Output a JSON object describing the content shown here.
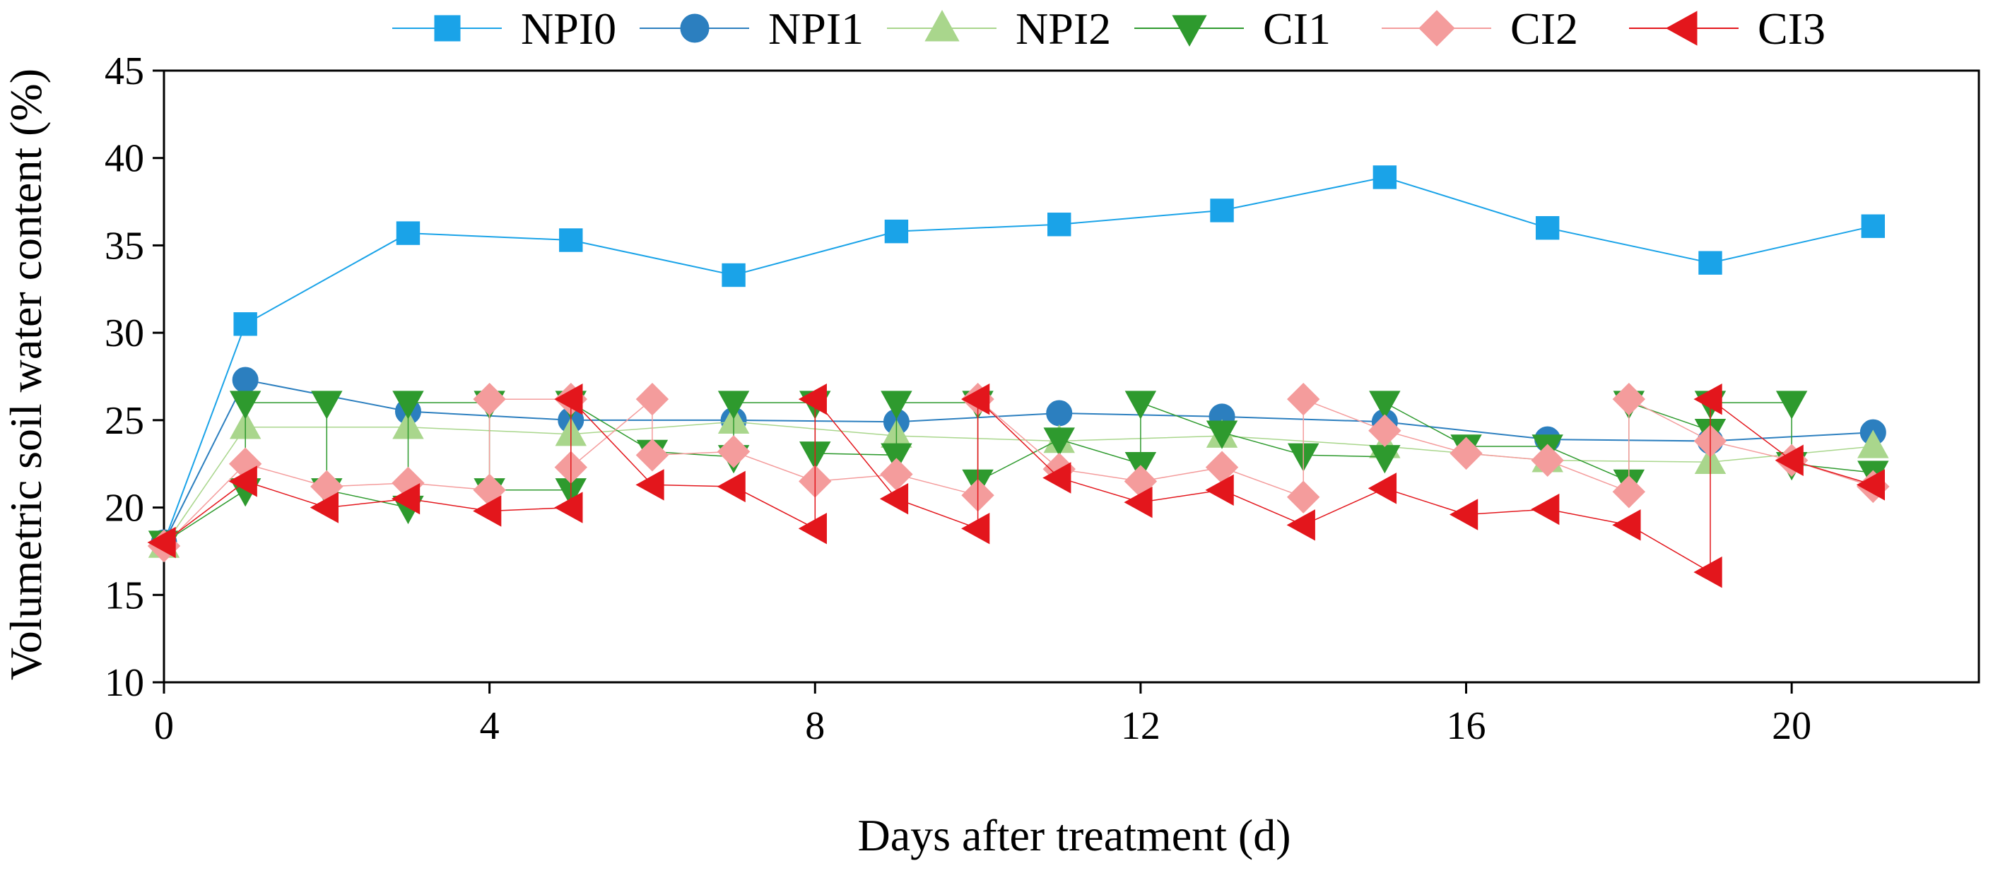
{
  "chart_data": {
    "type": "line",
    "title": "",
    "xlabel": "Days after treatment (d)",
    "ylabel": "Volumetric soil water content (%)",
    "xlim": [
      0,
      22.3
    ],
    "ylim": [
      10,
      45
    ],
    "xticks": [
      0,
      4,
      8,
      12,
      16,
      20
    ],
    "yticks": [
      10,
      15,
      20,
      25,
      30,
      35,
      40,
      45
    ],
    "grid": false,
    "legend_position": "top",
    "series": [
      {
        "name": "NPI0",
        "color": "#1aa3e8",
        "marker": "square",
        "line_width": 2,
        "x": [
          0,
          1,
          3,
          5,
          7,
          9,
          11,
          13,
          15,
          17,
          19,
          21
        ],
        "y": [
          18,
          30.5,
          35.7,
          35.3,
          33.3,
          35.8,
          36.2,
          37,
          38.9,
          36,
          34,
          36.1
        ]
      },
      {
        "name": "NPI1",
        "color": "#2c7fbf",
        "marker": "circle",
        "line_width": 2,
        "x": [
          0,
          1,
          3,
          5,
          7,
          9,
          11,
          13,
          15,
          17,
          19,
          21
        ],
        "y": [
          18,
          27.3,
          25.5,
          25,
          25,
          24.9,
          25.4,
          25.2,
          24.9,
          23.9,
          23.8,
          24.3
        ]
      },
      {
        "name": "NPI2",
        "color": "#a9d68c",
        "marker": "triangle-up",
        "line_width": 1.5,
        "x": [
          0,
          1,
          3,
          5,
          7,
          9,
          11,
          13,
          15,
          17,
          19,
          21
        ],
        "y": [
          17.8,
          24.6,
          24.6,
          24.2,
          24.9,
          24.1,
          23.8,
          24.1,
          23.5,
          22.7,
          22.6,
          23.5
        ]
      },
      {
        "name": "CI1",
        "color": "#2e9a2e",
        "marker": "triangle-down",
        "line_width": 1.5,
        "x": [
          0,
          1,
          1,
          2,
          2,
          3,
          3,
          4,
          4,
          5,
          5,
          6,
          7,
          7,
          8,
          8,
          9,
          9,
          10,
          10,
          11,
          12,
          12,
          13,
          14,
          15,
          15,
          16,
          17,
          18,
          18,
          19,
          19,
          20,
          20,
          21
        ],
        "y": [
          18,
          21,
          26,
          26,
          21,
          20,
          26,
          26,
          21,
          21,
          26,
          23.2,
          22.9,
          26,
          26,
          23.1,
          23,
          26,
          26,
          21.5,
          23.9,
          22.5,
          26,
          24.3,
          23,
          22.9,
          26,
          23.5,
          23.5,
          21.5,
          26,
          24.4,
          26,
          26,
          22.5,
          22
        ]
      },
      {
        "name": "CI2",
        "color": "#f49c9c",
        "marker": "diamond",
        "line_width": 1.5,
        "x": [
          0,
          1,
          2,
          3,
          4,
          4,
          5,
          5,
          6,
          6,
          7,
          8,
          9,
          10,
          10,
          11,
          12,
          13,
          14,
          14,
          15,
          16,
          17,
          18,
          18,
          19,
          20,
          21
        ],
        "y": [
          17.8,
          22.5,
          21.2,
          21.4,
          21,
          26.2,
          26.2,
          22.3,
          26.2,
          23,
          23.2,
          21.5,
          21.9,
          20.7,
          26.2,
          22.2,
          21.5,
          22.3,
          20.6,
          26.2,
          24.4,
          23.1,
          22.7,
          20.9,
          26.2,
          23.8,
          22.7,
          21.2
        ]
      },
      {
        "name": "CI3",
        "color": "#e3161c",
        "marker": "triangle-left",
        "line_width": 1.5,
        "x": [
          0,
          1,
          2,
          3,
          4,
          5,
          5,
          6,
          7,
          8,
          8,
          9,
          10,
          10,
          11,
          12,
          13,
          14,
          15,
          16,
          17,
          18,
          19,
          19,
          20,
          21
        ],
        "y": [
          18,
          21.5,
          20,
          20.5,
          19.8,
          20,
          26.2,
          21.3,
          21.2,
          18.8,
          26.2,
          20.5,
          18.8,
          26.2,
          21.7,
          20.3,
          21,
          19,
          21.1,
          19.6,
          19.9,
          19,
          16.3,
          26.2,
          22.7,
          21.3
        ]
      }
    ]
  }
}
